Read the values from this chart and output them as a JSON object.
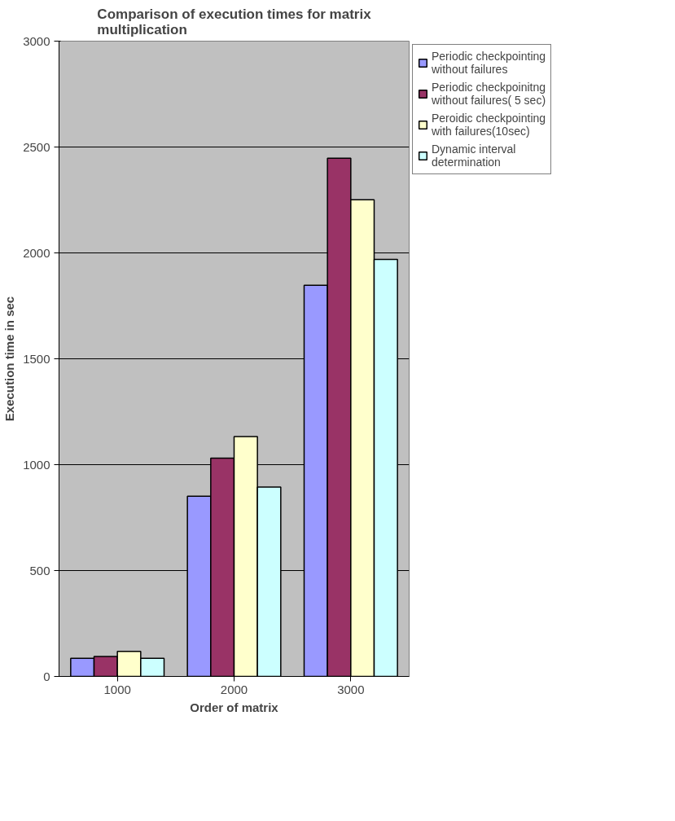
{
  "chart_data": {
    "type": "bar",
    "title": "Comparison of execution times for matrix multiplication",
    "xlabel": "Order of matrix",
    "ylabel": "Execution time in sec",
    "categories": [
      "1000",
      "2000",
      "3000"
    ],
    "series": [
      {
        "name": "Periodic checkpointing without failures",
        "color": "#9999ff",
        "values": [
          86,
          851,
          1847
        ]
      },
      {
        "name": "Periodic checkpoinitng without failures( 5 sec)",
        "color": "#993366",
        "values": [
          94,
          1031,
          2447
        ]
      },
      {
        "name": "Peroidic checkpointing with failures(10sec)",
        "color": "#ffffcc",
        "values": [
          118,
          1133,
          2251
        ]
      },
      {
        "name": "Dynamic interval determination",
        "color": "#ccffff",
        "values": [
          86,
          894,
          1969
        ]
      }
    ],
    "ylim": [
      0,
      3000
    ],
    "yticks": [
      0,
      500,
      1000,
      1500,
      2000,
      2500,
      3000
    ],
    "grid": "y",
    "legend": "right"
  }
}
